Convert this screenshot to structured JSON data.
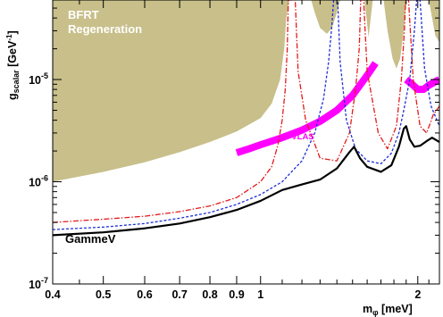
{
  "chart_data": {
    "type": "line",
    "xlabel": {
      "main": "m",
      "sub": "φ",
      "unit": " [meV]"
    },
    "ylabel": {
      "main": "g",
      "sub": "scalar",
      "unit_pre": " [GeV",
      "unit_sup": "-1",
      "unit_post": "]"
    },
    "xscale": "log",
    "yscale": "log",
    "xlim": [
      0.4,
      2.2
    ],
    "ylim": [
      1e-07,
      6e-05
    ],
    "x_ticks": [
      {
        "value": 0.4,
        "label": "0.4"
      },
      {
        "value": 0.5,
        "label": "0.5"
      },
      {
        "value": 0.6,
        "label": "0.6"
      },
      {
        "value": 0.7,
        "label": "0.7"
      },
      {
        "value": 0.8,
        "label": "0.8"
      },
      {
        "value": 0.9,
        "label": "0.9"
      },
      {
        "value": 1.0,
        "label": "1"
      },
      {
        "value": 2.0,
        "label": "2"
      }
    ],
    "y_ticks": [
      {
        "value": 1e-07,
        "base": "10",
        "exp": "-7"
      },
      {
        "value": 1e-06,
        "base": "10",
        "exp": "-6"
      },
      {
        "value": 1e-05,
        "base": "10",
        "exp": "-5"
      }
    ],
    "annotations": {
      "bfrt_line1": "BFRT",
      "bfrt_line2": "Regeneration",
      "pvlas": "PVLAS",
      "gammev": "GammeV"
    },
    "colors": {
      "bfrt_fill": "#c8bf8a",
      "pvlas": "#ff00ff",
      "combined": "#000000",
      "red_dashdot": "#e31a1c",
      "blue_dashed": "#1f2fd6"
    },
    "regions": [
      {
        "name": "BFRT Regeneration",
        "lower_boundary": [
          [
            0.4,
            1e-06
          ],
          [
            0.5,
            1.25e-06
          ],
          [
            0.6,
            1.55e-06
          ],
          [
            0.7,
            1.95e-06
          ],
          [
            0.8,
            2.45e-06
          ],
          [
            0.9,
            3.1e-06
          ],
          [
            1.0,
            4.2e-06
          ],
          [
            1.05,
            5.8e-06
          ],
          [
            1.09,
            1e-05
          ],
          [
            1.11,
            2e-05
          ],
          [
            1.12,
            4e-05
          ],
          [
            1.135,
            6e-05
          ],
          [
            1.25,
            6e-05
          ],
          [
            1.27,
            4.5e-05
          ],
          [
            1.3,
            3.2e-05
          ],
          [
            1.34,
            2.8e-05
          ],
          [
            1.37,
            3.2e-05
          ],
          [
            1.4,
            4.5e-05
          ],
          [
            1.42,
            6e-05
          ],
          [
            1.58,
            6e-05
          ],
          [
            1.595,
            4e-05
          ],
          [
            1.61,
            2.6e-05
          ],
          [
            1.625,
            4e-05
          ],
          [
            1.64,
            6e-05
          ],
          [
            1.72,
            6e-05
          ],
          [
            1.75,
            3e-05
          ],
          [
            1.79,
            1.6e-05
          ],
          [
            1.82,
            1.28e-05
          ],
          [
            1.85,
            1.6e-05
          ],
          [
            1.88,
            3e-05
          ],
          [
            1.9,
            6e-05
          ],
          [
            2.1,
            6e-05
          ],
          [
            2.13,
            4e-05
          ],
          [
            2.16,
            2.7e-05
          ],
          [
            2.2,
            2.3e-05
          ]
        ]
      }
    ],
    "series": [
      {
        "name": "PVLAS",
        "band": true,
        "segments": [
          {
            "center": [
              [
                0.9,
                1.92e-06
              ],
              [
                0.95,
                2.1e-06
              ],
              [
                1.0,
                2.3e-06
              ],
              [
                1.1,
                2.7e-06
              ],
              [
                1.2,
                3.2e-06
              ],
              [
                1.3,
                3.9e-06
              ],
              [
                1.4,
                5e-06
              ],
              [
                1.5,
                7e-06
              ],
              [
                1.6,
                1.1e-05
              ],
              [
                1.66,
                1.45e-05
              ]
            ]
          },
          {
            "center": [
              [
                1.9,
                1e-05
              ],
              [
                1.95,
                9e-06
              ],
              [
                2.0,
                8e-06
              ],
              [
                2.05,
                8e-06
              ],
              [
                2.1,
                8.8e-06
              ],
              [
                2.2,
                1e-05
              ]
            ]
          }
        ]
      },
      {
        "name": "",
        "style": "dash-dot",
        "color": "red",
        "points": [
          [
            0.4,
            4e-07
          ],
          [
            0.5,
            4.3e-07
          ],
          [
            0.6,
            4.6e-07
          ],
          [
            0.7,
            5.1e-07
          ],
          [
            0.8,
            5.8e-07
          ],
          [
            0.9,
            7e-07
          ],
          [
            1.0,
            1e-06
          ],
          [
            1.05,
            1.4e-06
          ],
          [
            1.08,
            2.3e-06
          ],
          [
            1.1,
            4e-06
          ],
          [
            1.115,
            8e-06
          ],
          [
            1.125,
            2e-05
          ],
          [
            1.13,
            6e-05
          ],
          [
            1.165,
            6e-05
          ],
          [
            1.18,
            1.2e-05
          ],
          [
            1.22,
            4e-06
          ],
          [
            1.3,
            1.7e-06
          ],
          [
            1.4,
            1.6e-06
          ],
          [
            1.48,
            3e-06
          ],
          [
            1.52,
            8e-06
          ],
          [
            1.545,
            2e-05
          ],
          [
            1.555,
            6e-05
          ],
          [
            1.575,
            6e-05
          ],
          [
            1.6,
            1.2e-05
          ],
          [
            1.68,
            3e-06
          ],
          [
            1.75,
            2.1e-06
          ],
          [
            1.82,
            3.5e-06
          ],
          [
            1.86,
            1e-05
          ],
          [
            1.885,
            3e-05
          ],
          [
            1.895,
            6e-05
          ],
          [
            1.92,
            6e-05
          ],
          [
            1.96,
            1e-05
          ],
          [
            2.02,
            3.5e-06
          ],
          [
            2.08,
            3e-06
          ],
          [
            2.14,
            4.5e-06
          ],
          [
            2.2,
            5.5e-06
          ]
        ]
      },
      {
        "name": "",
        "style": "dashed",
        "color": "blue",
        "points": [
          [
            0.4,
            3.4e-07
          ],
          [
            0.5,
            3.6e-07
          ],
          [
            0.6,
            3.9e-07
          ],
          [
            0.7,
            4.4e-07
          ],
          [
            0.8,
            5e-07
          ],
          [
            0.9,
            6e-07
          ],
          [
            1.0,
            7.5e-07
          ],
          [
            1.1,
            1e-06
          ],
          [
            1.2,
            1.6e-06
          ],
          [
            1.27,
            3e-06
          ],
          [
            1.32,
            6.5e-06
          ],
          [
            1.35,
            1.5e-05
          ],
          [
            1.37,
            3.5e-05
          ],
          [
            1.38,
            6e-05
          ],
          [
            1.405,
            6e-05
          ],
          [
            1.42,
            1.5e-05
          ],
          [
            1.46,
            4e-06
          ],
          [
            1.52,
            2.1e-06
          ],
          [
            1.6,
            1.6e-06
          ],
          [
            1.7,
            1.5e-06
          ],
          [
            1.78,
            1.9e-06
          ],
          [
            1.84,
            3e-06
          ],
          [
            1.88,
            5e-06
          ],
          [
            1.93,
            1e-05
          ],
          [
            1.97,
            3e-05
          ],
          [
            1.99,
            6e-05
          ],
          [
            2.02,
            6e-05
          ],
          [
            2.06,
            1.3e-05
          ],
          [
            2.12,
            5.5e-06
          ],
          [
            2.2,
            3.5e-06
          ]
        ]
      },
      {
        "name": "GammeV",
        "style": "solid",
        "color": "black",
        "points": [
          [
            0.4,
            3e-07
          ],
          [
            0.5,
            3.2e-07
          ],
          [
            0.6,
            3.5e-07
          ],
          [
            0.7,
            3.9e-07
          ],
          [
            0.8,
            4.5e-07
          ],
          [
            0.9,
            5.3e-07
          ],
          [
            1.0,
            6.5e-07
          ],
          [
            1.1,
            8.3e-07
          ],
          [
            1.2,
            9.4e-07
          ],
          [
            1.3,
            1.05e-06
          ],
          [
            1.4,
            1.35e-06
          ],
          [
            1.48,
            1.95e-06
          ],
          [
            1.51,
            2.2e-06
          ],
          [
            1.55,
            1.7e-06
          ],
          [
            1.6,
            1.4e-06
          ],
          [
            1.7,
            1.25e-06
          ],
          [
            1.78,
            1.45e-06
          ],
          [
            1.84,
            2.2e-06
          ],
          [
            1.88,
            3.3e-06
          ],
          [
            1.9,
            3.5e-06
          ],
          [
            1.93,
            2.6e-06
          ],
          [
            1.97,
            2.2e-06
          ],
          [
            2.02,
            2.25e-06
          ],
          [
            2.08,
            2.5e-06
          ],
          [
            2.13,
            2.7e-06
          ],
          [
            2.2,
            2.45e-06
          ]
        ]
      }
    ]
  }
}
